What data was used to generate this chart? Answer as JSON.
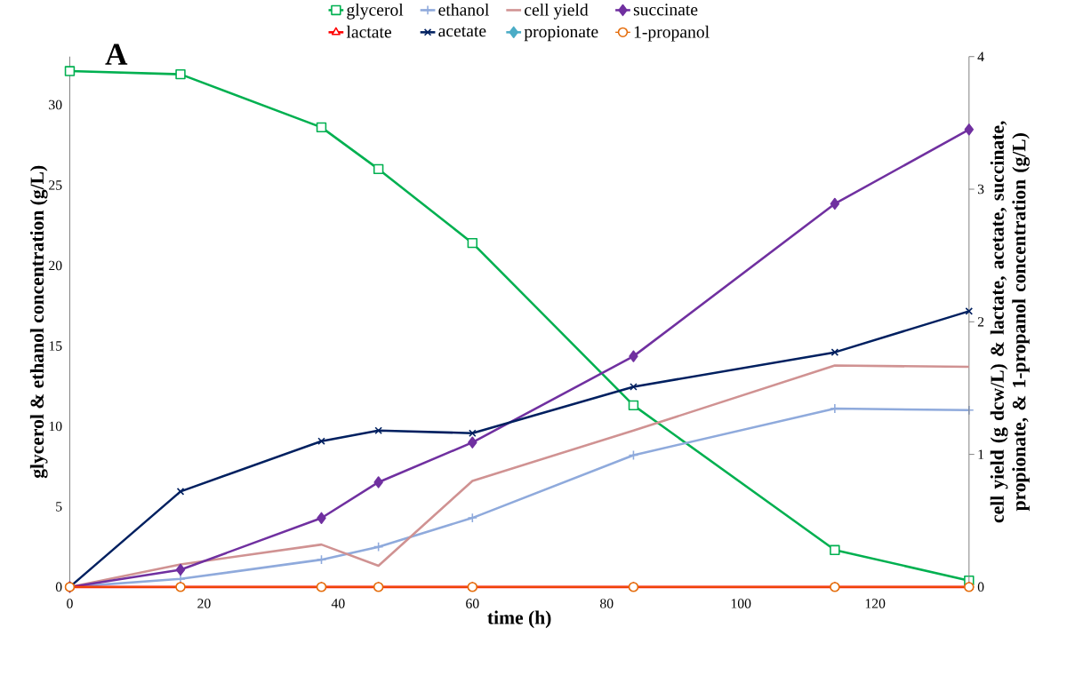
{
  "chart_data": {
    "type": "line",
    "annotations": [
      "A"
    ],
    "xlabel": "time (h)",
    "ylabel": "glycerol & ethanol concentration (g/L)",
    "y2label": "cell yield (g dcw/L) & lactate, acetate, succinate, propionate, & 1-propanol concentration (g/L)",
    "x": [
      0,
      16.5,
      37.5,
      46,
      60,
      84,
      114,
      134
    ],
    "xlim": [
      0,
      134
    ],
    "xticks": [
      0,
      20,
      40,
      60,
      80,
      100,
      120
    ],
    "ylim": [
      0,
      33
    ],
    "yticks": [
      0,
      5,
      10,
      15,
      20,
      25,
      30
    ],
    "y2lim": [
      0,
      4
    ],
    "y2ticks": [
      0,
      1,
      2,
      3,
      4
    ],
    "legend": "top",
    "line_style": "solid",
    "series": [
      {
        "name": "glycerol",
        "color": "#00b050",
        "marker": "square",
        "axis": "y",
        "values": [
          32.1,
          31.9,
          28.6,
          26.0,
          21.4,
          11.3,
          2.3,
          0.4
        ]
      },
      {
        "name": "ethanol",
        "color": "#8faadc",
        "marker": "plus",
        "axis": "y",
        "values": [
          0,
          0.5,
          1.7,
          2.5,
          4.3,
          8.2,
          11.1,
          11.0
        ]
      },
      {
        "name": "cell yield",
        "color": "#d09292",
        "marker": "none",
        "axis": "y2",
        "values": [
          0,
          0.17,
          0.32,
          0.16,
          0.8,
          1.18,
          1.67,
          1.66
        ]
      },
      {
        "name": "succinate",
        "color": "#7030a0",
        "marker": "diamond",
        "axis": "y2",
        "values": [
          0,
          0.13,
          0.52,
          0.79,
          1.09,
          1.74,
          2.89,
          3.45
        ]
      },
      {
        "name": "lactate",
        "color": "#ff0000",
        "marker": "triangle",
        "axis": "y2",
        "values": [
          0,
          0,
          0,
          0,
          0,
          0,
          0,
          0
        ]
      },
      {
        "name": "acetate",
        "color": "#002060",
        "marker": "cross",
        "axis": "y2",
        "values": [
          0,
          0.72,
          1.1,
          1.18,
          1.16,
          1.51,
          1.77,
          2.08
        ]
      },
      {
        "name": "propionate",
        "color": "#4bacc6",
        "marker": "diamond",
        "axis": "y2",
        "values": [
          null,
          null,
          null,
          null,
          null,
          null,
          null,
          null
        ]
      },
      {
        "name": "1-propanol",
        "color": "#e46c0a",
        "marker": "circle",
        "axis": "y2",
        "values": [
          0,
          0,
          0,
          0,
          0,
          0,
          0,
          0
        ]
      }
    ]
  }
}
